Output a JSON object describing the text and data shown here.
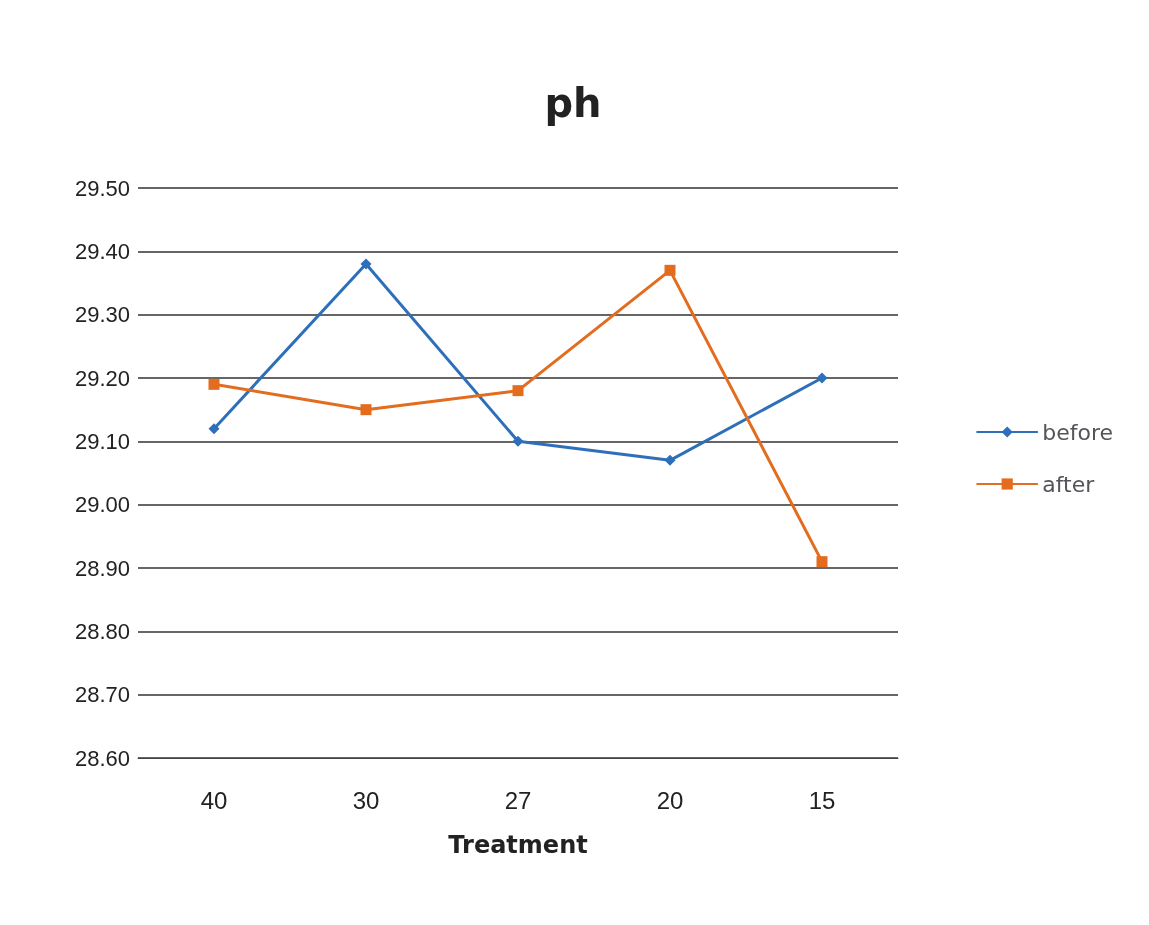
{
  "chart_data": {
    "type": "line",
    "title": "ph",
    "xlabel": "Treatment",
    "categories": [
      "40",
      "30",
      "27",
      "20",
      "15"
    ],
    "series": [
      {
        "name": "before",
        "color": "#2e6fba",
        "marker": "diamond",
        "values": [
          29.12,
          29.38,
          29.1,
          29.07,
          29.2
        ]
      },
      {
        "name": "after",
        "color": "#e36c1e",
        "marker": "square",
        "values": [
          29.19,
          29.15,
          29.18,
          29.37,
          28.91
        ]
      }
    ],
    "ylim": [
      28.6,
      29.5
    ],
    "yticks": [
      {
        "value": 28.6,
        "label": "28.60"
      },
      {
        "value": 28.7,
        "label": "28.70"
      },
      {
        "value": 28.8,
        "label": "28.80"
      },
      {
        "value": 28.9,
        "label": "28.90"
      },
      {
        "value": 29.0,
        "label": "29.00"
      },
      {
        "value": 29.1,
        "label": "29.10"
      },
      {
        "value": 29.2,
        "label": "29.20"
      },
      {
        "value": 29.3,
        "label": "29.30"
      },
      {
        "value": 29.4,
        "label": "29.40"
      },
      {
        "value": 29.5,
        "label": "29.50"
      }
    ],
    "grid": "y",
    "legend": "right"
  }
}
